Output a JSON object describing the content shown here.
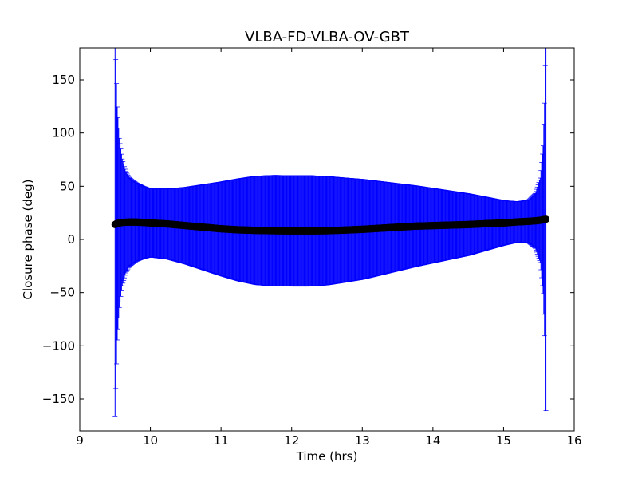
{
  "chart_data": {
    "type": "scatter",
    "title": "VLBA-FD-VLBA-OV-GBT",
    "xlabel": "Time (hrs)",
    "ylabel": "Closure phase (deg)",
    "xlim": [
      9,
      16
    ],
    "ylim": [
      -180,
      180
    ],
    "xticks": [
      9,
      10,
      11,
      12,
      13,
      14,
      15,
      16
    ],
    "xtick_labels": [
      "9",
      "10",
      "11",
      "12",
      "13",
      "14",
      "15",
      "16"
    ],
    "yticks": [
      150,
      100,
      50,
      0,
      -50,
      -100,
      -150
    ],
    "ytick_labels": [
      "150",
      "100",
      "50",
      "0",
      "−50",
      "−100",
      "−150"
    ],
    "grid": false,
    "legend": "none",
    "colors": {
      "points": "#000000",
      "errorbars": "#0000ff",
      "axes": "#000000"
    },
    "series": [
      {
        "x": [
          9.5,
          9.51,
          9.53,
          9.56,
          9.6,
          9.65,
          9.7,
          9.8,
          9.9,
          10.0,
          10.25,
          10.5,
          10.75,
          11.0,
          11.25,
          11.5,
          11.75,
          12.0,
          12.25,
          12.5,
          12.75,
          13.0,
          13.25,
          13.5,
          13.75,
          14.0,
          14.25,
          14.5,
          14.75,
          15.0,
          15.2,
          15.35,
          15.45,
          15.52,
          15.56,
          15.58,
          15.6
        ],
        "y": [
          14,
          14.5,
          15,
          15.5,
          16,
          16.2,
          16.3,
          16.3,
          16,
          15.5,
          14.5,
          13,
          11.5,
          10,
          9,
          8.5,
          8.2,
          8,
          8,
          8.2,
          8.8,
          9.5,
          10.5,
          11.5,
          12.5,
          13,
          13.5,
          14,
          14.8,
          15.5,
          16.5,
          17,
          17.5,
          18,
          18.5,
          18.8,
          19
        ],
        "yerr": [
          180,
          155,
          110,
          80,
          60,
          48,
          42,
          37,
          34,
          32,
          33,
          36,
          40,
          44,
          48,
          51,
          52,
          52,
          52,
          51,
          49,
          47,
          44,
          41,
          38,
          35,
          32,
          29,
          25,
          21,
          19,
          20,
          26,
          40,
          70,
          110,
          180
        ]
      }
    ]
  }
}
